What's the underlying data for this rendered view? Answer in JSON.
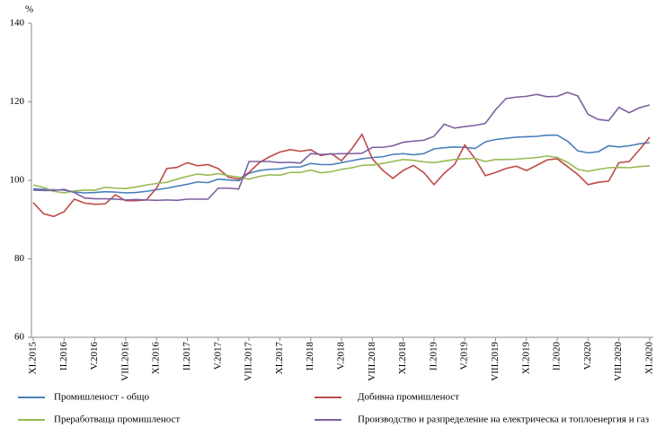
{
  "chart_data": {
    "type": "line",
    "y_unit": "%",
    "categories": [
      "XI.2015",
      null,
      null,
      "II.2016",
      null,
      null,
      "V.2016",
      null,
      null,
      "VIII.2016",
      null,
      null,
      "XI.2016",
      null,
      null,
      "II.2017",
      null,
      null,
      "V.2017",
      null,
      null,
      "VIII.2017",
      null,
      null,
      "XI.2017",
      null,
      null,
      "II.2018",
      null,
      null,
      "V.2018",
      null,
      null,
      "VIII.2018",
      null,
      null,
      "XI.2018",
      null,
      null,
      "II.2019",
      null,
      null,
      "V.2019",
      null,
      null,
      "VIII.2019",
      null,
      null,
      "XI.2019",
      null,
      null,
      "II.2020",
      null,
      null,
      "V.2020",
      null,
      null,
      "VIII.2020",
      null,
      null,
      "XI.2020"
    ],
    "ylim": [
      60,
      140
    ],
    "yticks": [
      60,
      80,
      100,
      120,
      140
    ],
    "grid": false,
    "series": [
      {
        "name": "Промишленост - общо",
        "color": "#4a7ebb",
        "values": [
          97.8,
          97.7,
          97.6,
          97.5,
          97.0,
          96.8,
          96.9,
          97.1,
          97.0,
          96.8,
          96.9,
          97.2,
          97.6,
          98.0,
          98.5,
          99.0,
          99.6,
          99.4,
          100.3,
          100.1,
          99.9,
          101.8,
          102.5,
          102.8,
          102.9,
          103.4,
          103.4,
          104.3,
          104.0,
          104.0,
          104.5,
          105.0,
          105.5,
          105.8,
          106.0,
          106.6,
          106.8,
          106.5,
          106.8,
          108.0,
          108.3,
          108.5,
          108.4,
          108.1,
          109.8,
          110.4,
          110.7,
          111.0,
          111.1,
          111.2,
          111.5,
          111.5,
          110.0,
          107.5,
          107.0,
          107.3,
          108.8,
          108.5,
          108.8,
          109.3,
          109.6
        ]
      },
      {
        "name": "Добивна промишленост",
        "color": "#be4b48",
        "values": [
          94.3,
          91.5,
          90.8,
          92.0,
          95.2,
          94.2,
          93.9,
          94.0,
          96.3,
          94.8,
          94.8,
          95.0,
          98.0,
          103.0,
          103.3,
          104.5,
          103.7,
          104.0,
          103.0,
          100.8,
          100.3,
          102.0,
          104.5,
          106.0,
          107.2,
          107.8,
          107.4,
          107.8,
          106.3,
          106.8,
          105.0,
          108.0,
          111.7,
          105.5,
          102.6,
          100.5,
          102.5,
          103.8,
          102.0,
          98.9,
          101.8,
          104.0,
          109.0,
          105.5,
          101.2,
          102.0,
          103.0,
          103.6,
          102.5,
          103.8,
          105.2,
          105.5,
          103.5,
          101.5,
          98.9,
          99.5,
          99.8,
          104.5,
          104.8,
          107.8,
          111.0
        ]
      },
      {
        "name": "Преработваща промишленост",
        "color": "#98b954",
        "values": [
          98.8,
          98.2,
          97.2,
          96.8,
          97.3,
          97.5,
          97.5,
          98.2,
          98.0,
          97.9,
          98.3,
          98.8,
          99.2,
          99.5,
          100.3,
          101.0,
          101.6,
          101.3,
          101.7,
          101.2,
          100.8,
          100.3,
          101.0,
          101.4,
          101.3,
          102.0,
          102.0,
          102.6,
          101.9,
          102.2,
          102.8,
          103.2,
          103.8,
          103.9,
          104.3,
          104.8,
          105.3,
          105.1,
          104.7,
          104.5,
          104.9,
          105.3,
          105.5,
          105.6,
          104.8,
          105.3,
          105.3,
          105.4,
          105.6,
          105.8,
          106.2,
          105.8,
          104.6,
          102.8,
          102.3,
          102.8,
          103.2,
          103.3,
          103.2,
          103.5,
          103.7
        ]
      },
      {
        "name": "Производство и разпределение на електрическа и топлоенергия  и газ",
        "color": "#7d60a0",
        "values": [
          97.5,
          97.4,
          97.4,
          97.7,
          96.9,
          95.5,
          95.3,
          95.3,
          95.2,
          95.0,
          95.1,
          95.0,
          94.9,
          95.0,
          94.9,
          95.2,
          95.2,
          95.2,
          98.0,
          98.0,
          97.8,
          104.8,
          104.8,
          104.8,
          104.5,
          104.6,
          104.4,
          106.8,
          106.6,
          106.7,
          106.8,
          106.8,
          106.9,
          108.4,
          108.4,
          108.8,
          109.7,
          110.0,
          110.2,
          111.2,
          114.3,
          113.3,
          113.7,
          114.0,
          114.5,
          118.0,
          120.8,
          121.2,
          121.4,
          121.9,
          121.3,
          121.4,
          122.4,
          121.5,
          116.8,
          115.5,
          115.2,
          118.6,
          117.2,
          118.5,
          119.2
        ]
      }
    ]
  }
}
